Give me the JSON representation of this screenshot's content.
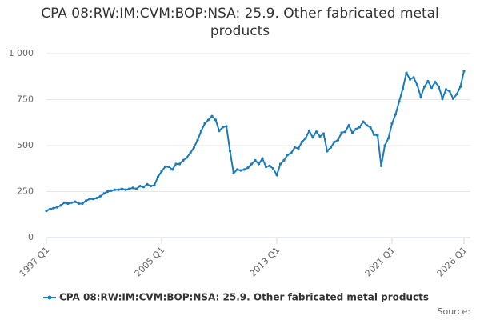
{
  "chart_data": {
    "type": "line",
    "title": "CPA 08:RW:IM:CVM:BOP:NSA: 25.9. Other fabricated metal products",
    "source": "Source:",
    "categories": [
      "1997 Q1",
      null,
      null,
      null,
      null,
      null,
      null,
      null,
      null,
      null,
      null,
      null,
      null,
      null,
      null,
      null,
      null,
      null,
      null,
      null,
      null,
      null,
      null,
      null,
      null,
      null,
      null,
      null,
      null,
      null,
      null,
      null,
      "2005 Q1",
      null,
      null,
      null,
      null,
      null,
      null,
      null,
      null,
      null,
      null,
      null,
      null,
      null,
      null,
      null,
      null,
      null,
      null,
      null,
      null,
      null,
      null,
      null,
      null,
      null,
      null,
      null,
      null,
      null,
      null,
      null,
      "2013 Q1",
      null,
      null,
      null,
      null,
      null,
      null,
      null,
      null,
      null,
      null,
      null,
      null,
      null,
      null,
      null,
      null,
      null,
      null,
      null,
      null,
      null,
      null,
      null,
      null,
      null,
      null,
      null,
      null,
      null,
      null,
      null,
      "2021 Q1",
      null,
      null,
      null,
      null,
      null,
      null,
      null,
      null,
      null,
      null,
      null,
      null,
      null,
      null,
      null,
      null,
      null,
      null,
      null,
      "2026 Q1"
    ],
    "series": [
      {
        "name": "CPA 08:RW:IM:CVM:BOP:NSA: 25.9. Other fabricated metal products",
        "color": "#1a7bbd",
        "values": [
          145,
          155,
          160,
          165,
          175,
          190,
          185,
          190,
          195,
          185,
          185,
          200,
          210,
          210,
          215,
          225,
          240,
          250,
          255,
          260,
          260,
          265,
          260,
          265,
          270,
          265,
          280,
          275,
          290,
          280,
          285,
          330,
          360,
          385,
          385,
          370,
          400,
          400,
          420,
          435,
          460,
          490,
          530,
          580,
          620,
          640,
          660,
          640,
          580,
          600,
          605,
          470,
          350,
          370,
          365,
          370,
          380,
          400,
          420,
          400,
          430,
          385,
          390,
          375,
          340,
          400,
          420,
          450,
          460,
          490,
          485,
          520,
          540,
          580,
          545,
          575,
          550,
          565,
          470,
          490,
          520,
          530,
          570,
          575,
          610,
          570,
          590,
          600,
          630,
          610,
          600,
          560,
          555,
          390,
          500,
          540,
          620,
          670,
          740,
          810,
          895,
          860,
          870,
          830,
          765,
          820,
          850,
          815,
          845,
          820,
          755,
          805,
          795,
          755,
          780,
          820,
          905
        ]
      }
    ],
    "ylim": [
      0,
      1000
    ],
    "yticks": [
      0,
      250,
      500,
      750,
      {
        "value": 1000,
        "label": "1 000"
      }
    ],
    "grid": true
  }
}
